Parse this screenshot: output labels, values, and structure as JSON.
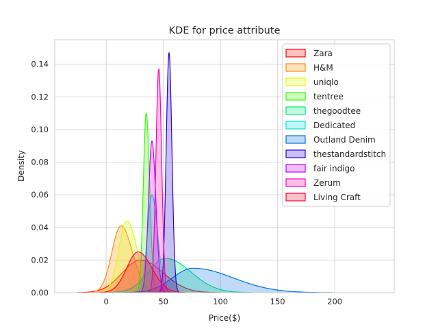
{
  "chart_data": {
    "type": "area",
    "title": "KDE for price attribute",
    "xlabel": "Price($)",
    "ylabel": "Density",
    "xlim": [
      -45,
      252
    ],
    "ylim": [
      0,
      0.155
    ],
    "x_ticks": [
      0,
      50,
      100,
      150,
      200
    ],
    "y_ticks": [
      0.0,
      0.02,
      0.04,
      0.06,
      0.08,
      0.1,
      0.12,
      0.14
    ],
    "x_tick_labels": [
      "0",
      "50",
      "100",
      "150",
      "200"
    ],
    "y_tick_labels": [
      "0.00",
      "0.02",
      "0.04",
      "0.06",
      "0.08",
      "0.10",
      "0.12",
      "0.14"
    ],
    "grid": true,
    "legend_position": "top-right",
    "series": [
      {
        "name": "Zara",
        "color": "#ff0000",
        "peak_x": 30,
        "peak_density": 0.02,
        "sd_left": 16,
        "sd_right": 20
      },
      {
        "name": "H&M",
        "color": "#ff8c00",
        "peak_x": 13,
        "peak_density": 0.041,
        "sd_left": 8,
        "sd_right": 10
      },
      {
        "name": "uniqlo",
        "color": "#ddff00",
        "peak_x": 18,
        "peak_density": 0.044,
        "sd_left": 7,
        "sd_right": 9
      },
      {
        "name": "tentree",
        "color": "#33ff00",
        "peak_x": 35,
        "peak_density": 0.11,
        "sd_left": 2.5,
        "sd_right": 3
      },
      {
        "name": "thegoodtee",
        "color": "#00e87a",
        "peak_x": 52,
        "peak_density": 0.021,
        "sd_left": 15,
        "sd_right": 22
      },
      {
        "name": "Dedicated",
        "color": "#00e5e5",
        "peak_x": 40,
        "peak_density": 0.06,
        "sd_left": 4,
        "sd_right": 5
      },
      {
        "name": "Outland Denim",
        "color": "#0070e0",
        "peak_x": 76,
        "peak_density": 0.015,
        "sd_left": 18,
        "sd_right": 35
      },
      {
        "name": "thestandardstitch",
        "color": "#2a00d5",
        "peak_x": 55,
        "peak_density": 0.147,
        "sd_left": 2.5,
        "sd_right": 2.5
      },
      {
        "name": "fair indigo",
        "color": "#c200ff",
        "peak_x": 40,
        "peak_density": 0.093,
        "sd_left": 3,
        "sd_right": 3.5
      },
      {
        "name": "Zerum",
        "color": "#ff00aa",
        "peak_x": 46,
        "peak_density": 0.137,
        "sd_left": 2.5,
        "sd_right": 2.5
      },
      {
        "name": "Living Craft",
        "color": "#ff0030",
        "peak_x": 28,
        "peak_density": 0.025,
        "sd_left": 10,
        "sd_right": 12
      }
    ]
  }
}
